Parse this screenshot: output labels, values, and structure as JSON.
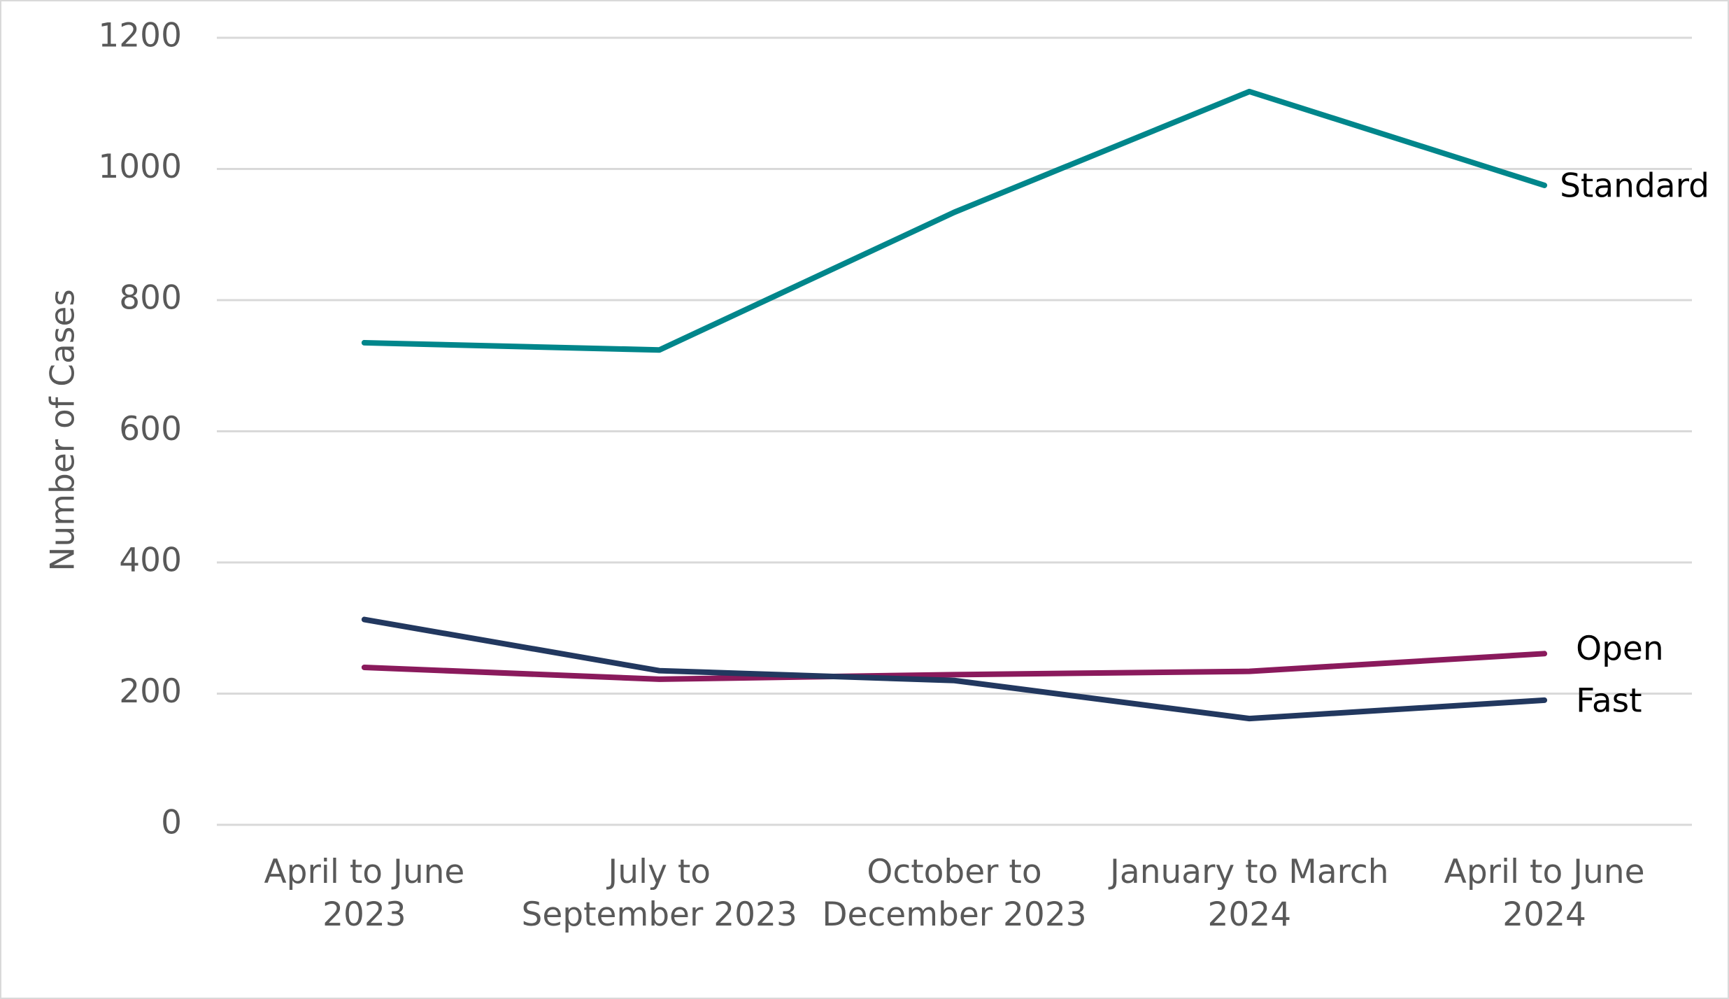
{
  "chart_data": {
    "type": "line",
    "y_label": "Number of Cases",
    "categories": [
      "April to June 2023",
      "July to September 2023",
      "October to December 2023",
      "January to March 2024",
      "April to June 2024"
    ],
    "series": [
      {
        "name": "Standard",
        "color": "#00868b",
        "values": [
          735,
          724,
          934,
          1118,
          975
        ]
      },
      {
        "name": "Open",
        "color": "#8a1a5c",
        "values": [
          240,
          222,
          229,
          234,
          261
        ]
      },
      {
        "name": "Fast",
        "color": "#22385f",
        "values": [
          313,
          235,
          220,
          162,
          190
        ]
      }
    ],
    "ylim": [
      0,
      1200
    ],
    "yticks": [
      0,
      200,
      400,
      600,
      800,
      1000,
      1200
    ],
    "grid": true
  }
}
